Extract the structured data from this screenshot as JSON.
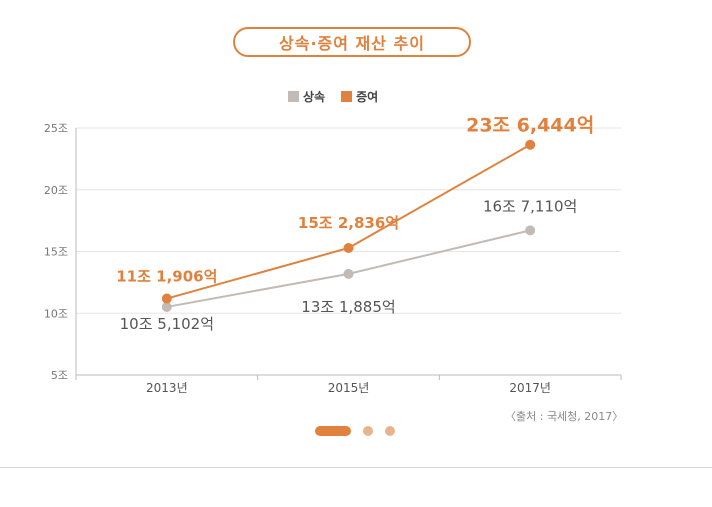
{
  "title": "상속·증여 재산 추이",
  "legend": [
    {
      "label": "상속",
      "color": "#c2bbb5"
    },
    {
      "label": "증여",
      "color": "#e0823e"
    }
  ],
  "source": "〈출처 : 국세청, 2017〉",
  "chart_data": {
    "type": "line",
    "title": "상속·증여 재산 추이",
    "categories": [
      "2013년",
      "2015년",
      "2017년"
    ],
    "y_ticks": [
      "5조",
      "10조",
      "15조",
      "20조",
      "25조"
    ],
    "ylim": [
      5,
      25
    ],
    "y_unit": "조",
    "grid": true,
    "legend_position": "top-center",
    "series": [
      {
        "name": "상속",
        "color": "#c2bbb5",
        "values": [
          10.5102,
          13.1885,
          16.711
        ],
        "labels": [
          "10조 5,102억",
          "13조 1,885억",
          "16조 7,110억"
        ],
        "label_color": "#555555"
      },
      {
        "name": "증여",
        "color": "#e0823e",
        "values": [
          11.1906,
          15.2836,
          23.6444
        ],
        "labels": [
          "11조 1,906억",
          "15조 2,836억",
          "23조 6,444억"
        ],
        "label_color": "#e0823e"
      }
    ]
  },
  "pager": {
    "count": 3,
    "active": 0
  }
}
